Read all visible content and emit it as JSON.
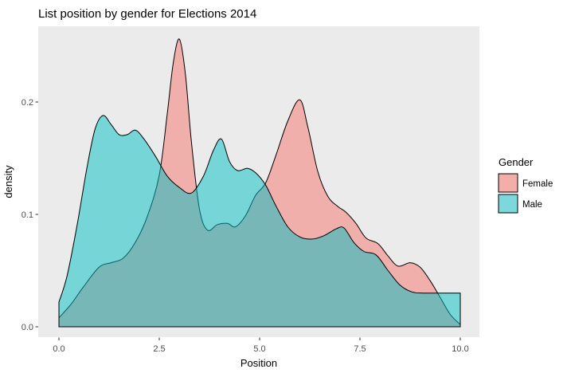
{
  "title": "List position by gender for Elections 2014",
  "axes": {
    "x": {
      "label": "Position",
      "ticks": [
        "0.0",
        "2.5",
        "5.0",
        "7.5",
        "10.0"
      ]
    },
    "y": {
      "label": "density",
      "ticks": [
        "0.0",
        "0.1",
        "0.2"
      ]
    }
  },
  "legend": {
    "title": "Gender",
    "entries": [
      {
        "label": "Female",
        "swatch_fill": "#F5ADA9",
        "swatch_border": "#000000"
      },
      {
        "label": "Male",
        "swatch_fill": "#7CD8DA",
        "swatch_border": "#000000"
      }
    ]
  },
  "colors": {
    "page_background": "#FFFFFF",
    "panel_background": "#EBEBEB",
    "female_base": "#F8766D",
    "male_base": "#00BFC4",
    "overlap": "#78B7B7",
    "tick_label": "#4D4D4D",
    "outline": "#000000"
  },
  "chart_data": {
    "type": "area",
    "subtype": "overlapping-density",
    "title": "List position by gender for Elections 2014",
    "xlabel": "Position",
    "ylabel": "density",
    "xlim": [
      0,
      10
    ],
    "ylim": [
      0,
      0.26
    ],
    "x_ticks": [
      0,
      2.5,
      5,
      7.5,
      10
    ],
    "y_ticks": [
      0,
      0.1,
      0.2
    ],
    "grid": false,
    "legend_position": "right",
    "legend_title": "Gender",
    "series": [
      {
        "name": "Female",
        "fill": "#F1AFAB",
        "stroke": "#000000",
        "points": [
          [
            0,
            0.008
          ],
          [
            0.3,
            0.02
          ],
          [
            0.6,
            0.035
          ],
          [
            1,
            0.053
          ],
          [
            1.3,
            0.057
          ],
          [
            1.6,
            0.061
          ],
          [
            1.9,
            0.075
          ],
          [
            2.2,
            0.098
          ],
          [
            2.5,
            0.135
          ],
          [
            2.7,
            0.19
          ],
          [
            2.85,
            0.235
          ],
          [
            3,
            0.256
          ],
          [
            3.15,
            0.225
          ],
          [
            3.3,
            0.165
          ],
          [
            3.5,
            0.105
          ],
          [
            3.7,
            0.086
          ],
          [
            3.95,
            0.091
          ],
          [
            4.2,
            0.092
          ],
          [
            4.4,
            0.089
          ],
          [
            4.65,
            0.099
          ],
          [
            4.9,
            0.117
          ],
          [
            5.15,
            0.128
          ],
          [
            5.4,
            0.152
          ],
          [
            5.7,
            0.183
          ],
          [
            6,
            0.202
          ],
          [
            6.2,
            0.178
          ],
          [
            6.45,
            0.138
          ],
          [
            6.7,
            0.116
          ],
          [
            6.95,
            0.107
          ],
          [
            7.15,
            0.102
          ],
          [
            7.4,
            0.092
          ],
          [
            7.65,
            0.079
          ],
          [
            7.95,
            0.074
          ],
          [
            8.2,
            0.063
          ],
          [
            8.45,
            0.054
          ],
          [
            8.75,
            0.057
          ],
          [
            9,
            0.053
          ],
          [
            9.25,
            0.041
          ],
          [
            9.5,
            0.026
          ],
          [
            9.75,
            0.011
          ],
          [
            10,
            0.002
          ]
        ]
      },
      {
        "name": "Male",
        "fill": "rgba(0,191,196,0.5)",
        "stroke": "#000000",
        "points": [
          [
            0,
            0.022
          ],
          [
            0.2,
            0.045
          ],
          [
            0.45,
            0.09
          ],
          [
            0.7,
            0.142
          ],
          [
            0.9,
            0.176
          ],
          [
            1.1,
            0.188
          ],
          [
            1.3,
            0.18
          ],
          [
            1.5,
            0.171
          ],
          [
            1.7,
            0.171
          ],
          [
            1.9,
            0.175
          ],
          [
            2.1,
            0.168
          ],
          [
            2.4,
            0.152
          ],
          [
            2.7,
            0.134
          ],
          [
            3,
            0.124
          ],
          [
            3.3,
            0.119
          ],
          [
            3.6,
            0.134
          ],
          [
            3.85,
            0.157
          ],
          [
            4.05,
            0.167
          ],
          [
            4.25,
            0.147
          ],
          [
            4.45,
            0.139
          ],
          [
            4.7,
            0.141
          ],
          [
            4.9,
            0.137
          ],
          [
            5.15,
            0.126
          ],
          [
            5.4,
            0.108
          ],
          [
            5.7,
            0.089
          ],
          [
            6,
            0.08
          ],
          [
            6.3,
            0.078
          ],
          [
            6.6,
            0.081
          ],
          [
            6.9,
            0.087
          ],
          [
            7.1,
            0.088
          ],
          [
            7.35,
            0.075
          ],
          [
            7.6,
            0.067
          ],
          [
            7.9,
            0.064
          ],
          [
            8.2,
            0.05
          ],
          [
            8.5,
            0.037
          ],
          [
            8.8,
            0.031
          ],
          [
            9.1,
            0.03
          ],
          [
            9.5,
            0.03
          ],
          [
            10,
            0.03
          ]
        ]
      }
    ]
  }
}
